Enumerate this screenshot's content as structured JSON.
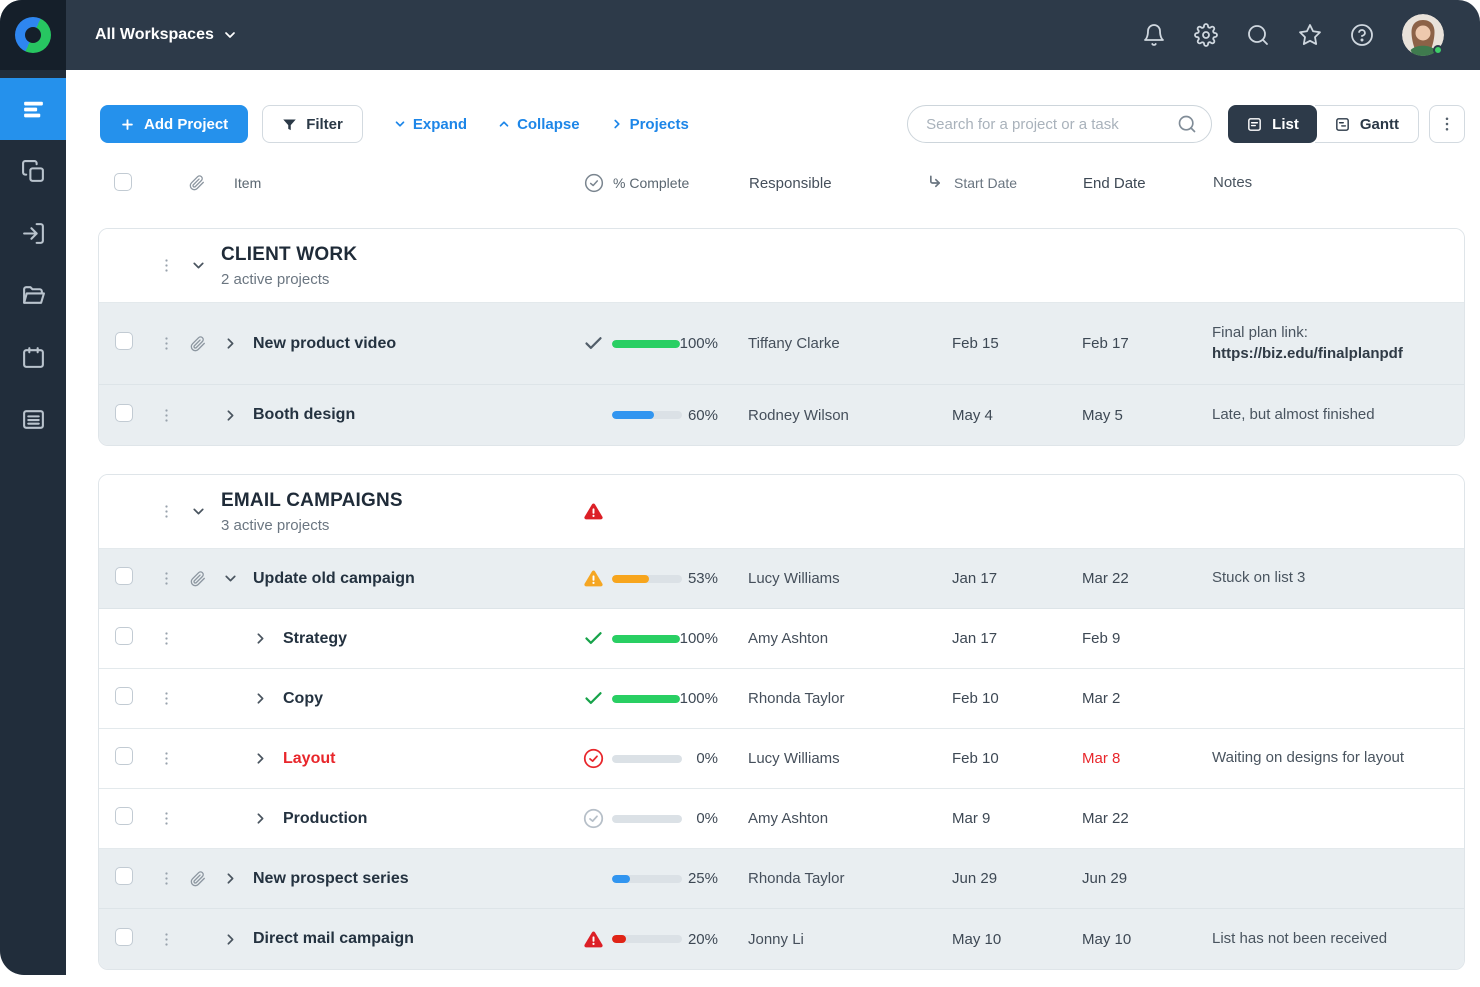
{
  "colors": {
    "green": "#29cf63",
    "blue": "#3195f0",
    "orange": "#f7a51d",
    "red": "#e02417",
    "warn_orange": "#f5a623",
    "warn_red": "#dc1f26",
    "check_dark": "#525e6a",
    "check_green": "#17a34a",
    "circle_red": "#e8262b",
    "circle_gray": "#b6bfc8",
    "accent_blue": "#2591ec",
    "link_blue": "#1d86e8"
  },
  "topbar": {
    "workspace": "All Workspaces",
    "icons": [
      "notifications-bell",
      "settings-gear",
      "search",
      "favorites-star",
      "help"
    ]
  },
  "sidebar": {
    "items": [
      "task-list",
      "projects",
      "sign-in",
      "folders",
      "calendar",
      "board-details"
    ],
    "active_index": 0
  },
  "toolbar": {
    "add_project": "Add Project",
    "filter": "Filter",
    "expand": "Expand",
    "collapse": "Collapse",
    "projects": "Projects",
    "search_placeholder": "Search for a project or a task",
    "list": "List",
    "gantt": "Gantt"
  },
  "table": {
    "headers": {
      "item": "Item",
      "complete": "% Complete",
      "responsible": "Responsible",
      "start": "Start Date",
      "end": "End Date",
      "notes": "Notes"
    },
    "groups": [
      {
        "title": "CLIENT WORK",
        "subtitle": "2 active projects",
        "warning": false,
        "rows": [
          {
            "name": "New product video",
            "indent": false,
            "attachment": true,
            "chevron": "right",
            "status": "check-dark",
            "percent": 100,
            "percent_label": "100%",
            "bar": "green",
            "responsible": "Tiffany Clarke",
            "start": "Feb 15",
            "end": "Feb 17",
            "end_alert": false,
            "name_alert": false,
            "shaded": true,
            "tall": true,
            "notes": [
              "Final plan link:",
              "https://biz.edu/finalplanpdf"
            ],
            "notes_bold_index": 1
          },
          {
            "name": "Booth design",
            "indent": false,
            "attachment": false,
            "chevron": "right",
            "status": null,
            "percent": 60,
            "percent_label": "60%",
            "bar": "blue",
            "responsible": "Rodney Wilson",
            "start": "May 4",
            "end": "May 5",
            "end_alert": false,
            "name_alert": false,
            "shaded": true,
            "tall": false,
            "notes": [
              "Late, but almost finished"
            ],
            "notes_bold_index": -1
          }
        ]
      },
      {
        "title": "EMAIL CAMPAIGNS",
        "subtitle": "3 active projects",
        "warning": true,
        "rows": [
          {
            "name": "Update old campaign",
            "indent": false,
            "attachment": true,
            "chevron": "down",
            "status": "warn-orange",
            "percent": 53,
            "percent_label": "53%",
            "bar": "orange",
            "responsible": "Lucy Williams",
            "start": "Jan 17",
            "end": "Mar 22",
            "end_alert": false,
            "name_alert": false,
            "shaded": true,
            "tall": false,
            "notes": [
              "Stuck on list 3"
            ],
            "notes_bold_index": -1
          },
          {
            "name": "Strategy",
            "indent": true,
            "attachment": false,
            "chevron": "right",
            "status": "check-green",
            "percent": 100,
            "percent_label": "100%",
            "bar": "green",
            "responsible": "Amy Ashton",
            "start": "Jan 17",
            "end": "Feb 9",
            "end_alert": false,
            "name_alert": false,
            "shaded": false,
            "tall": false,
            "notes": [],
            "notes_bold_index": -1
          },
          {
            "name": "Copy",
            "indent": true,
            "attachment": false,
            "chevron": "right",
            "status": "check-green",
            "percent": 100,
            "percent_label": "100%",
            "bar": "green",
            "responsible": "Rhonda Taylor",
            "start": "Feb 10",
            "end": "Mar 2",
            "end_alert": false,
            "name_alert": false,
            "shaded": false,
            "tall": false,
            "notes": [],
            "notes_bold_index": -1
          },
          {
            "name": "Layout",
            "indent": true,
            "attachment": false,
            "chevron": "right",
            "status": "circle-red",
            "percent": 0,
            "percent_label": "0%",
            "bar": "green",
            "responsible": "Lucy Williams",
            "start": "Feb 10",
            "end": "Mar 8",
            "end_alert": true,
            "name_alert": true,
            "shaded": false,
            "tall": false,
            "notes": [
              "Waiting on designs for layout"
            ],
            "notes_bold_index": -1
          },
          {
            "name": "Production",
            "indent": true,
            "attachment": false,
            "chevron": "right",
            "status": "circle-gray",
            "percent": 0,
            "percent_label": "0%",
            "bar": "green",
            "responsible": "Amy Ashton",
            "start": "Mar 9",
            "end": "Mar 22",
            "end_alert": false,
            "name_alert": false,
            "shaded": false,
            "tall": false,
            "notes": [],
            "notes_bold_index": -1
          },
          {
            "name": "New prospect series",
            "indent": false,
            "attachment": true,
            "chevron": "right",
            "status": null,
            "percent": 25,
            "percent_label": "25%",
            "bar": "blue",
            "responsible": "Rhonda Taylor",
            "start": "Jun 29",
            "end": "Jun 29",
            "end_alert": false,
            "name_alert": false,
            "shaded": true,
            "tall": false,
            "notes": [],
            "notes_bold_index": -1
          },
          {
            "name": "Direct mail campaign",
            "indent": false,
            "attachment": false,
            "chevron": "right",
            "status": "warn-red",
            "percent": 20,
            "percent_label": "20%",
            "bar": "red",
            "responsible": "Jonny Li",
            "start": "May 10",
            "end": "May 10",
            "end_alert": false,
            "name_alert": false,
            "shaded": true,
            "tall": false,
            "notes": [
              "List has not been received"
            ],
            "notes_bold_index": -1
          }
        ]
      }
    ]
  }
}
